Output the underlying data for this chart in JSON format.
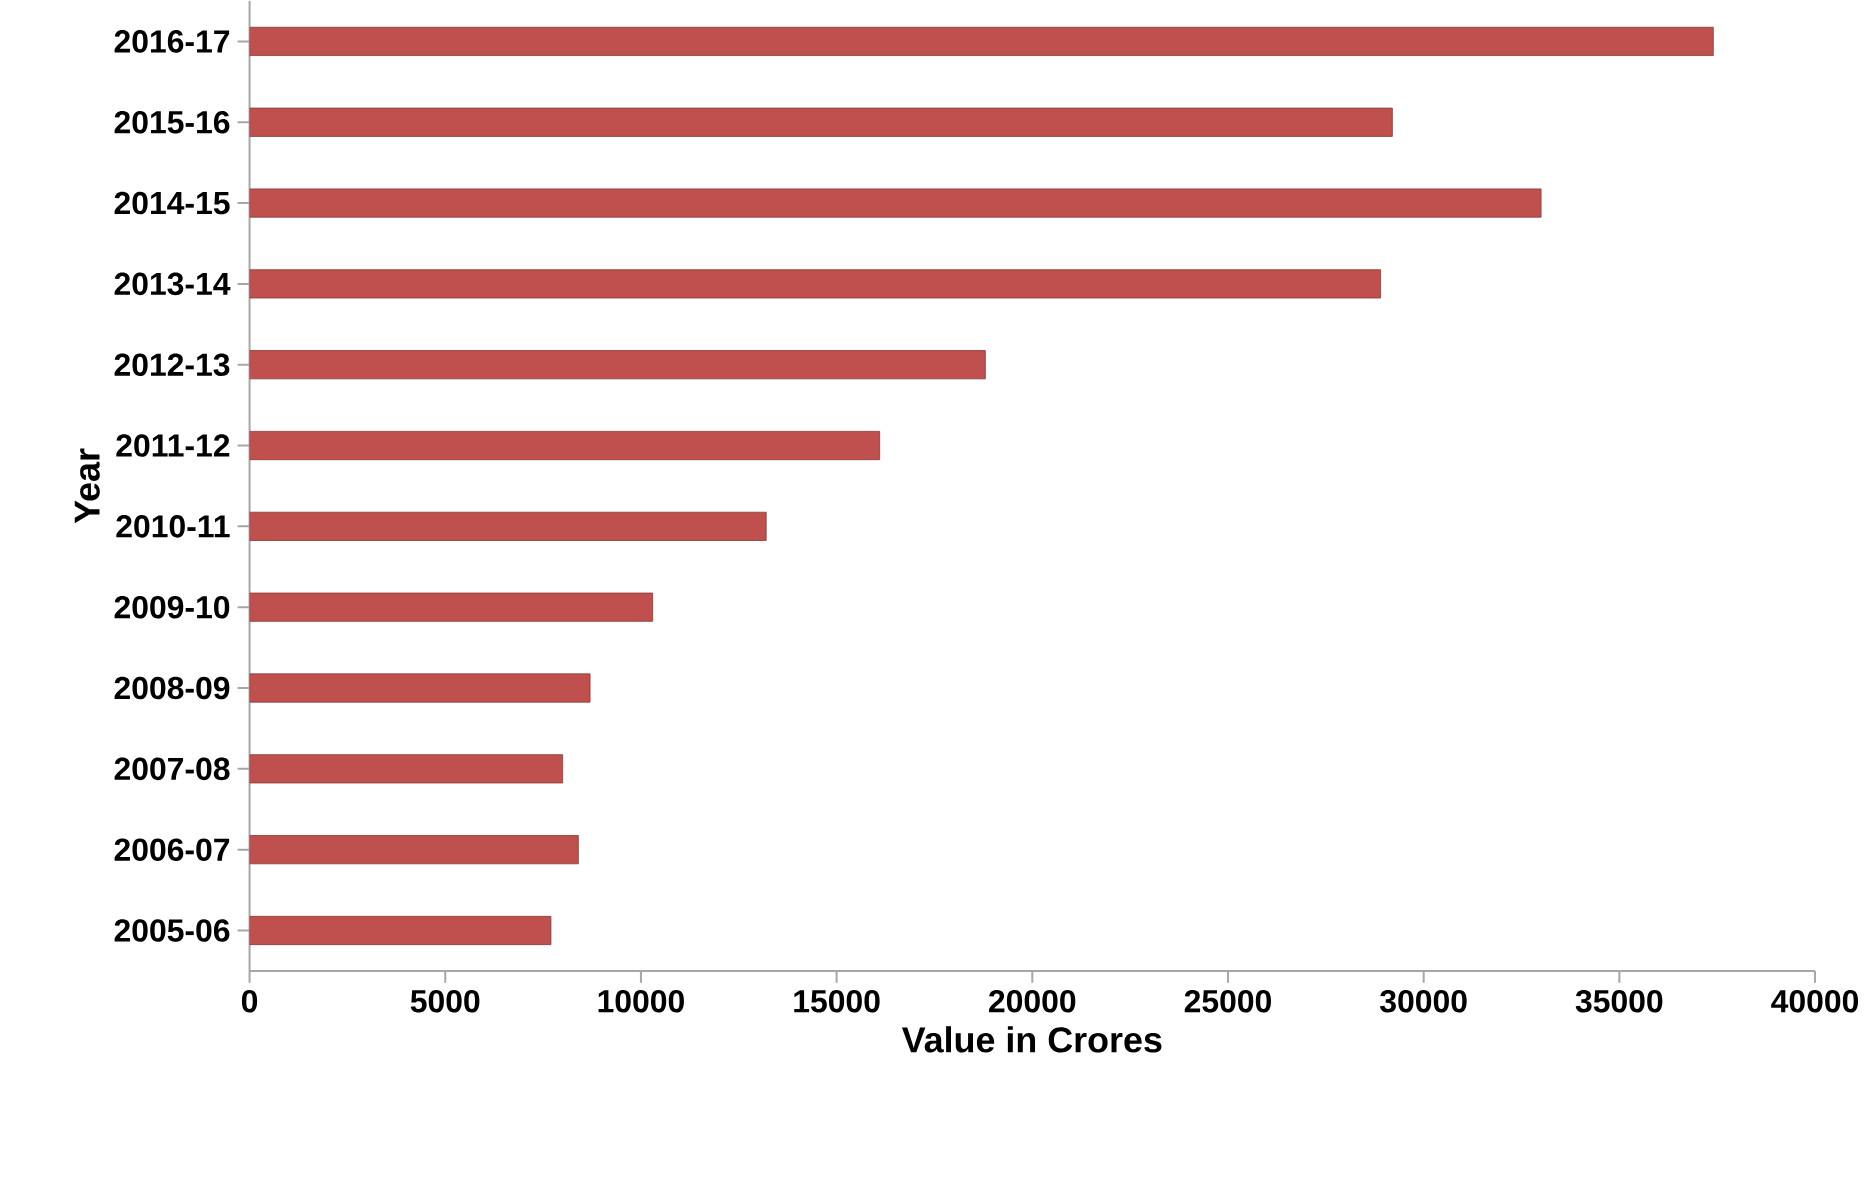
{
  "chart_data": {
    "type": "bar",
    "orientation": "horizontal",
    "xlabel": "Value in  Crores",
    "ylabel": "Year",
    "categories": [
      "2016-17",
      "2015-16",
      "2014-15",
      "2013-14",
      "2012-13",
      "2011-12",
      "2010-11",
      "2009-10",
      "2008-09",
      "2007-08",
      "2006-07",
      "2005-06"
    ],
    "values": [
      37400,
      29200,
      33000,
      28900,
      18800,
      16100,
      13200,
      10300,
      8700,
      8000,
      8400,
      7700
    ],
    "color": "#c0504d",
    "xlim": [
      0,
      40000
    ],
    "xticks": [
      0,
      5000,
      10000,
      15000,
      20000,
      25000,
      30000,
      35000,
      40000
    ],
    "grid": false
  }
}
